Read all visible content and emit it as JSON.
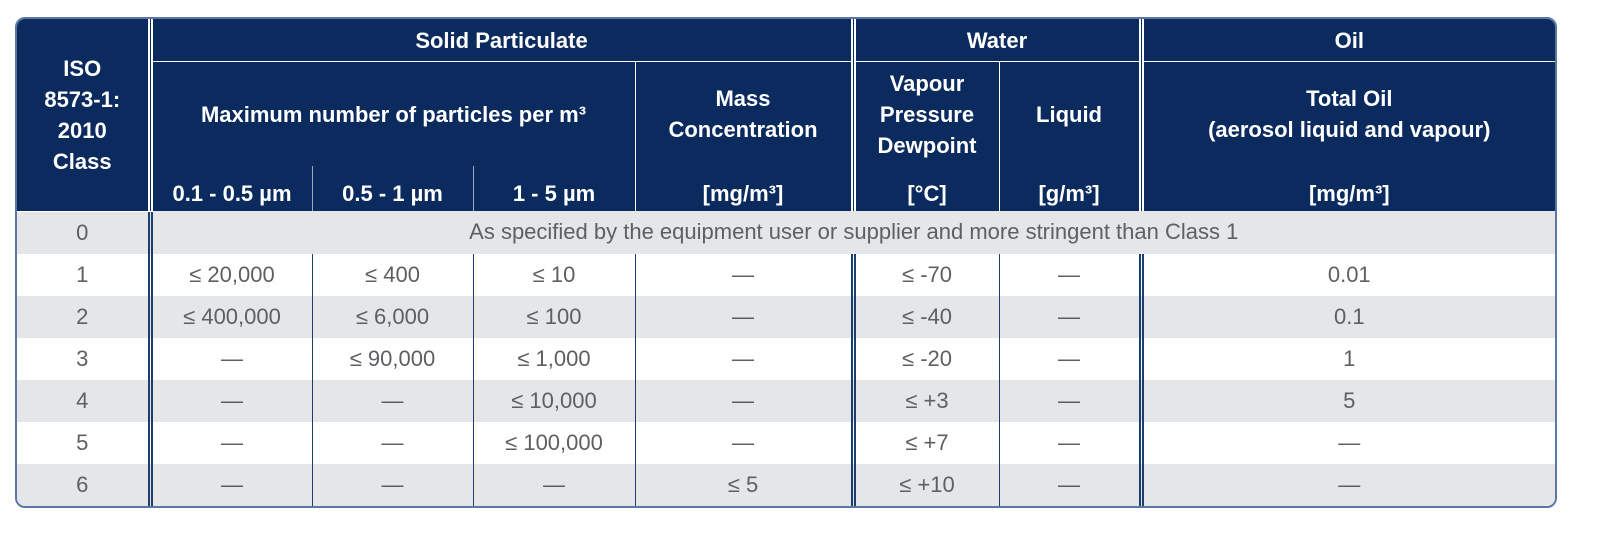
{
  "table": {
    "header": {
      "class_lines": [
        "ISO",
        "8573-1:",
        "2010",
        "Class"
      ],
      "groups": [
        "Solid Particulate",
        "Water",
        "Oil"
      ],
      "particles": "Maximum number of particles per m³",
      "mass_lines": [
        "Mass",
        "Concentration"
      ],
      "vapour_lines": [
        "Vapour",
        "Pressure",
        "Dewpoint"
      ],
      "liquid": "Liquid",
      "oil_lines": [
        "Total Oil",
        "(aerosol liquid and vapour)"
      ],
      "units": [
        "0.1 - 0.5 µm",
        "0.5 - 1 µm",
        "1 - 5 µm",
        "[mg/m³]",
        "[°C]",
        "[g/m³]",
        "[mg/m³]"
      ]
    },
    "class_0": {
      "class": "0",
      "note": "As specified by the equipment user or supplier and more stringent than Class 1"
    },
    "rows": [
      [
        "1",
        "≤ 20,000",
        "≤ 400",
        "≤ 10",
        "—",
        "≤ -70",
        "—",
        "0.01"
      ],
      [
        "2",
        "≤ 400,000",
        "≤ 6,000",
        "≤ 100",
        "—",
        "≤ -40",
        "—",
        "0.1"
      ],
      [
        "3",
        "—",
        "≤ 90,000",
        "≤ 1,000",
        "—",
        "≤ -20",
        "—",
        "1"
      ],
      [
        "4",
        "—",
        "—",
        "≤ 10,000",
        "—",
        "≤ +3",
        "—",
        "5"
      ],
      [
        "5",
        "—",
        "—",
        "≤ 100,000",
        "—",
        "≤ +7",
        "—",
        "—"
      ],
      [
        "6",
        "—",
        "—",
        "—",
        "≤ 5",
        "≤ +10",
        "—",
        "—"
      ]
    ]
  }
}
